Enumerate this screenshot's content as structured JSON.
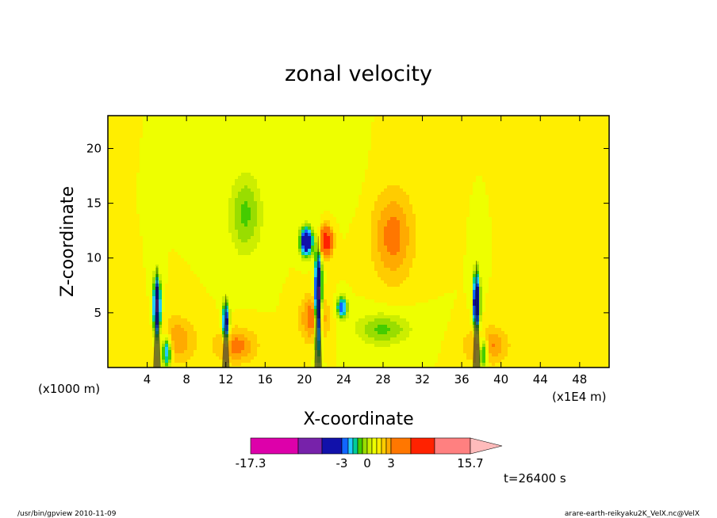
{
  "chart_data": {
    "type": "heatmap",
    "title": "zonal velocity",
    "xlabel": "X-coordinate",
    "ylabel": "Z-coordinate",
    "x_unit_left": "(x1000 m)",
    "x_unit_right": "(x1E4 m)",
    "xlim": [
      0,
      51
    ],
    "ylim": [
      0,
      23
    ],
    "x_ticks": [
      4,
      8,
      12,
      16,
      20,
      24,
      28,
      32,
      36,
      40,
      44,
      48
    ],
    "y_ticks": [
      5,
      10,
      15,
      20
    ],
    "background_value": 1,
    "features": [
      {
        "x": 28,
        "z": 3.5,
        "sx": 3.0,
        "sz": 1.6,
        "v": -1.5
      },
      {
        "x": 14,
        "z": 14,
        "sx": 1.8,
        "sz": 4.0,
        "v": -1.5
      },
      {
        "x": 21,
        "z": 4.5,
        "sx": 1.3,
        "sz": 2.0,
        "v": 3.0
      },
      {
        "x": 13,
        "z": 2.0,
        "sx": 2.0,
        "sz": 1.5,
        "v": 2.4
      },
      {
        "x": 7,
        "z": 2.5,
        "sx": 1.8,
        "sz": 2.0,
        "v": 2.0
      },
      {
        "x": 29,
        "z": 12,
        "sx": 2.0,
        "sz": 4.0,
        "v": 2.4
      },
      {
        "x": 38.5,
        "z": 2.0,
        "sx": 2.0,
        "sz": 1.6,
        "v": 2.4
      },
      {
        "x": 20.2,
        "z": 11.5,
        "sx": 0.6,
        "sz": 1.2,
        "v": -6.5
      },
      {
        "x": 22.2,
        "z": 11.5,
        "sx": 0.6,
        "sz": 1.2,
        "v": 7.0
      },
      {
        "x": 23.8,
        "z": 5.5,
        "sx": 0.5,
        "sz": 0.9,
        "v": -4.0
      },
      {
        "x": 5,
        "z": 5.5,
        "sx": 0.35,
        "sz": 2.5,
        "v": -7.0
      },
      {
        "x": 12,
        "z": 4.0,
        "sx": 0.35,
        "sz": 1.8,
        "v": -5.0
      },
      {
        "x": 21.4,
        "z": 6.0,
        "sx": 0.35,
        "sz": 4.0,
        "v": -8.0
      },
      {
        "x": 37.5,
        "z": 6.0,
        "sx": 0.35,
        "sz": 2.5,
        "v": -6.0
      },
      {
        "x": 38.2,
        "z": 1.5,
        "sx": 0.5,
        "sz": 1.5,
        "v": -4.0
      },
      {
        "x": 6.0,
        "z": 1.5,
        "sx": 0.5,
        "sz": 1.5,
        "v": -4.0
      },
      {
        "x": 24,
        "z": 18,
        "sx": 1.5,
        "sz": 3.0,
        "v": -0.4
      }
    ],
    "colorbar": {
      "labels": [
        "-17.3",
        "-3",
        "0",
        "3",
        "15.7"
      ],
      "levels": [
        -17.3,
        -9,
        -5.5,
        -3,
        -2.3,
        -1.6,
        -1,
        -0.4,
        0,
        0.4,
        1,
        1.6,
        2.3,
        3,
        5.5,
        9,
        15.7
      ],
      "colors": [
        "#dd00aa",
        "#7722aa",
        "#1111aa",
        "#1166ff",
        "#22ccff",
        "#00cc99",
        "#44cc00",
        "#99dd00",
        "#ccee00",
        "#eeff00",
        "#ffee00",
        "#ffcc00",
        "#ffaa00",
        "#ff7700",
        "#ff2200",
        "#ff8080"
      ],
      "extend_color": "#ffbbbb"
    }
  },
  "time_label": "t=26400 s",
  "footer_left": "/usr/bin/gpview  2010-11-09",
  "footer_right": "arare-earth-reikyaku2K_VelX.nc@VelX"
}
